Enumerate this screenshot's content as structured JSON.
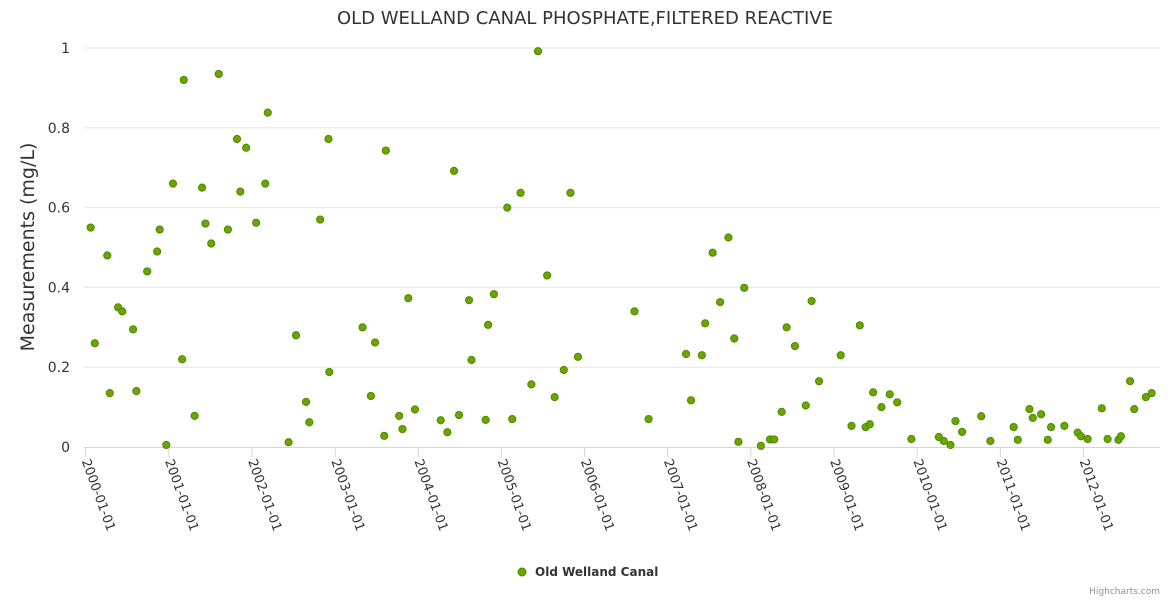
{
  "chart_data": {
    "type": "scatter",
    "title": "OLD WELLAND CANAL PHOSPHATE,FILTERED REACTIVE",
    "xlabel": "",
    "ylabel": "Measurements (mg/L)",
    "ylim": [
      0,
      1
    ],
    "xlim": [
      1999.98,
      2012.92
    ],
    "y_ticks": [
      {
        "value": 0,
        "label": "0"
      },
      {
        "value": 0.2,
        "label": "0.2"
      },
      {
        "value": 0.4,
        "label": "0.4"
      },
      {
        "value": 0.6,
        "label": "0.6"
      },
      {
        "value": 0.8,
        "label": "0.8"
      },
      {
        "value": 1,
        "label": "1"
      }
    ],
    "x_ticks": [
      {
        "value": 2000,
        "label": "2000-01-01"
      },
      {
        "value": 2001,
        "label": "2001-01-01"
      },
      {
        "value": 2002,
        "label": "2002-01-01"
      },
      {
        "value": 2003,
        "label": "2003-01-01"
      },
      {
        "value": 2004,
        "label": "2004-01-01"
      },
      {
        "value": 2005,
        "label": "2005-01-01"
      },
      {
        "value": 2006,
        "label": "2006-01-01"
      },
      {
        "value": 2007,
        "label": "2007-01-01"
      },
      {
        "value": 2008,
        "label": "2008-01-01"
      },
      {
        "value": 2009,
        "label": "2009-01-01"
      },
      {
        "value": 2010,
        "label": "2010-01-01"
      },
      {
        "value": 2011,
        "label": "2011-01-01"
      },
      {
        "value": 2012,
        "label": "2012-01-01"
      }
    ],
    "grid": true,
    "legend_position": "bottom-center",
    "series": [
      {
        "name": "Old Welland Canal",
        "color": "#6aa500",
        "points": [
          {
            "x": 2000.06,
            "y": 0.55
          },
          {
            "x": 2000.11,
            "y": 0.26
          },
          {
            "x": 2000.26,
            "y": 0.48
          },
          {
            "x": 2000.29,
            "y": 0.135
          },
          {
            "x": 2000.39,
            "y": 0.35
          },
          {
            "x": 2000.44,
            "y": 0.34
          },
          {
            "x": 2000.57,
            "y": 0.295
          },
          {
            "x": 2000.61,
            "y": 0.14
          },
          {
            "x": 2000.74,
            "y": 0.44
          },
          {
            "x": 2000.86,
            "y": 0.49
          },
          {
            "x": 2000.89,
            "y": 0.545
          },
          {
            "x": 2000.97,
            "y": 0.005
          },
          {
            "x": 2001.05,
            "y": 0.66
          },
          {
            "x": 2001.16,
            "y": 0.22
          },
          {
            "x": 2001.18,
            "y": 0.92
          },
          {
            "x": 2001.31,
            "y": 0.078
          },
          {
            "x": 2001.4,
            "y": 0.65
          },
          {
            "x": 2001.44,
            "y": 0.56
          },
          {
            "x": 2001.51,
            "y": 0.51
          },
          {
            "x": 2001.6,
            "y": 0.935
          },
          {
            "x": 2001.71,
            "y": 0.545
          },
          {
            "x": 2001.82,
            "y": 0.772
          },
          {
            "x": 2001.86,
            "y": 0.64
          },
          {
            "x": 2001.93,
            "y": 0.75
          },
          {
            "x": 2002.05,
            "y": 0.562
          },
          {
            "x": 2002.16,
            "y": 0.66
          },
          {
            "x": 2002.19,
            "y": 0.838
          },
          {
            "x": 2002.44,
            "y": 0.012
          },
          {
            "x": 2002.53,
            "y": 0.28
          },
          {
            "x": 2002.65,
            "y": 0.113
          },
          {
            "x": 2002.69,
            "y": 0.062
          },
          {
            "x": 2002.82,
            "y": 0.57
          },
          {
            "x": 2002.92,
            "y": 0.772
          },
          {
            "x": 2002.93,
            "y": 0.188
          },
          {
            "x": 2003.33,
            "y": 0.3
          },
          {
            "x": 2003.43,
            "y": 0.128
          },
          {
            "x": 2003.48,
            "y": 0.262
          },
          {
            "x": 2003.59,
            "y": 0.028
          },
          {
            "x": 2003.61,
            "y": 0.743
          },
          {
            "x": 2003.77,
            "y": 0.078
          },
          {
            "x": 2003.81,
            "y": 0.045
          },
          {
            "x": 2003.88,
            "y": 0.373
          },
          {
            "x": 2003.96,
            "y": 0.094
          },
          {
            "x": 2004.27,
            "y": 0.067
          },
          {
            "x": 2004.35,
            "y": 0.037
          },
          {
            "x": 2004.43,
            "y": 0.692
          },
          {
            "x": 2004.49,
            "y": 0.08
          },
          {
            "x": 2004.61,
            "y": 0.368
          },
          {
            "x": 2004.64,
            "y": 0.218
          },
          {
            "x": 2004.81,
            "y": 0.068
          },
          {
            "x": 2004.84,
            "y": 0.306
          },
          {
            "x": 2004.91,
            "y": 0.383
          },
          {
            "x": 2005.07,
            "y": 0.6
          },
          {
            "x": 2005.13,
            "y": 0.07
          },
          {
            "x": 2005.23,
            "y": 0.637
          },
          {
            "x": 2005.36,
            "y": 0.157
          },
          {
            "x": 2005.44,
            "y": 0.992
          },
          {
            "x": 2005.55,
            "y": 0.43
          },
          {
            "x": 2005.64,
            "y": 0.125
          },
          {
            "x": 2005.75,
            "y": 0.193
          },
          {
            "x": 2005.83,
            "y": 0.637
          },
          {
            "x": 2005.92,
            "y": 0.226
          },
          {
            "x": 2006.6,
            "y": 0.34
          },
          {
            "x": 2006.77,
            "y": 0.07
          },
          {
            "x": 2007.22,
            "y": 0.233
          },
          {
            "x": 2007.28,
            "y": 0.117
          },
          {
            "x": 2007.41,
            "y": 0.23
          },
          {
            "x": 2007.45,
            "y": 0.31
          },
          {
            "x": 2007.54,
            "y": 0.487
          },
          {
            "x": 2007.63,
            "y": 0.363
          },
          {
            "x": 2007.73,
            "y": 0.525
          },
          {
            "x": 2007.8,
            "y": 0.272
          },
          {
            "x": 2007.85,
            "y": 0.013
          },
          {
            "x": 2007.92,
            "y": 0.399
          },
          {
            "x": 2008.12,
            "y": 0.003
          },
          {
            "x": 2008.23,
            "y": 0.019
          },
          {
            "x": 2008.28,
            "y": 0.019
          },
          {
            "x": 2008.37,
            "y": 0.088
          },
          {
            "x": 2008.43,
            "y": 0.3
          },
          {
            "x": 2008.53,
            "y": 0.253
          },
          {
            "x": 2008.66,
            "y": 0.104
          },
          {
            "x": 2008.73,
            "y": 0.366
          },
          {
            "x": 2008.82,
            "y": 0.165
          },
          {
            "x": 2009.08,
            "y": 0.23
          },
          {
            "x": 2009.21,
            "y": 0.053
          },
          {
            "x": 2009.31,
            "y": 0.305
          },
          {
            "x": 2009.38,
            "y": 0.05
          },
          {
            "x": 2009.43,
            "y": 0.057
          },
          {
            "x": 2009.47,
            "y": 0.137
          },
          {
            "x": 2009.57,
            "y": 0.1
          },
          {
            "x": 2009.67,
            "y": 0.132
          },
          {
            "x": 2009.76,
            "y": 0.112
          },
          {
            "x": 2009.93,
            "y": 0.02
          },
          {
            "x": 2010.26,
            "y": 0.025
          },
          {
            "x": 2010.32,
            "y": 0.015
          },
          {
            "x": 2010.4,
            "y": 0.005
          },
          {
            "x": 2010.46,
            "y": 0.065
          },
          {
            "x": 2010.54,
            "y": 0.038
          },
          {
            "x": 2010.77,
            "y": 0.077
          },
          {
            "x": 2010.88,
            "y": 0.015
          },
          {
            "x": 2011.16,
            "y": 0.05
          },
          {
            "x": 2011.21,
            "y": 0.018
          },
          {
            "x": 2011.35,
            "y": 0.095
          },
          {
            "x": 2011.39,
            "y": 0.073
          },
          {
            "x": 2011.49,
            "y": 0.082
          },
          {
            "x": 2011.57,
            "y": 0.018
          },
          {
            "x": 2011.61,
            "y": 0.05
          },
          {
            "x": 2011.77,
            "y": 0.053
          },
          {
            "x": 2011.93,
            "y": 0.036
          },
          {
            "x": 2011.97,
            "y": 0.027
          },
          {
            "x": 2012.05,
            "y": 0.02
          },
          {
            "x": 2012.22,
            "y": 0.097
          },
          {
            "x": 2012.29,
            "y": 0.02
          },
          {
            "x": 2012.42,
            "y": 0.018
          },
          {
            "x": 2012.45,
            "y": 0.027
          },
          {
            "x": 2012.56,
            "y": 0.165
          },
          {
            "x": 2012.61,
            "y": 0.095
          },
          {
            "x": 2012.75,
            "y": 0.125
          },
          {
            "x": 2012.82,
            "y": 0.135
          }
        ]
      }
    ]
  },
  "credits": "Highcharts.com"
}
